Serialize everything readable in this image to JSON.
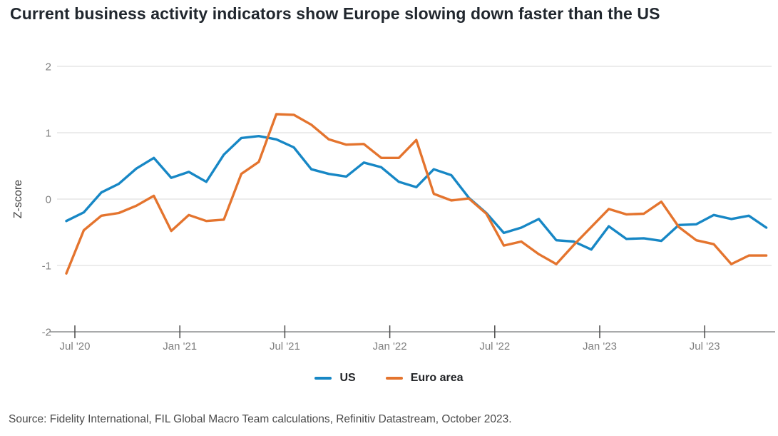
{
  "title": "Current business activity indicators show Europe slowing down faster than the US",
  "source": "Source: Fidelity International, FIL Global Macro Team calculations, Refinitiv Datastream, October 2023.",
  "colors": {
    "us": "#1787c5",
    "euro_area": "#e4742e",
    "grid": "#d9d9d9",
    "axis_line": "#a9aaab",
    "tick_mark": "#4a4a4a",
    "tick_label": "#7f7f7f",
    "axis_title": "#3c3c3c",
    "title": "#21272e",
    "source": "#4a4a4a"
  },
  "chart_data": {
    "type": "line",
    "title": "Current business activity indicators show Europe slowing down faster than the US",
    "ylabel": "Z-score",
    "xlabel": "",
    "ylim": [
      -2,
      2
    ],
    "grid": true,
    "legend_position": "bottom",
    "yticks": [
      "2",
      "1",
      "0",
      "-1",
      "-2"
    ],
    "ytick_values": [
      2,
      1,
      0,
      -1,
      -2
    ],
    "xticks": [
      {
        "label": "Jul '20",
        "index": 1
      },
      {
        "label": "Jan '21",
        "index": 7
      },
      {
        "label": "Jul '21",
        "index": 13
      },
      {
        "label": "Jan '22",
        "index": 19
      },
      {
        "label": "Jul '22",
        "index": 25
      },
      {
        "label": "Jan '23",
        "index": 31
      },
      {
        "label": "Jul '23",
        "index": 37
      }
    ],
    "x": [
      "Jun '20",
      "Jul '20",
      "Aug '20",
      "Sep '20",
      "Oct '20",
      "Nov '20",
      "Dec '20",
      "Jan '21",
      "Feb '21",
      "Mar '21",
      "Apr '21",
      "May '21",
      "Jun '21",
      "Jul '21",
      "Aug '21",
      "Sep '21",
      "Oct '21",
      "Nov '21",
      "Dec '21",
      "Jan '22",
      "Feb '22",
      "Mar '22",
      "Apr '22",
      "May '22",
      "Jun '22",
      "Jul '22",
      "Aug '22",
      "Sep '22",
      "Oct '22",
      "Nov '22",
      "Dec '22",
      "Jan '23",
      "Feb '23",
      "Mar '23",
      "Apr '23",
      "May '23",
      "Jun '23",
      "Jul '23",
      "Aug '23",
      "Sep '23",
      "Oct '23"
    ],
    "series": [
      {
        "name": "US",
        "color_key": "us",
        "values": [
          -0.33,
          -0.2,
          0.1,
          0.23,
          0.46,
          0.62,
          0.32,
          0.41,
          0.26,
          0.67,
          0.92,
          0.95,
          0.9,
          0.78,
          0.45,
          0.38,
          0.34,
          0.55,
          0.48,
          0.26,
          0.18,
          0.45,
          0.36,
          0.02,
          -0.21,
          -0.51,
          -0.43,
          -0.3,
          -0.62,
          -0.64,
          -0.76,
          -0.41,
          -0.6,
          -0.59,
          -0.63,
          -0.39,
          -0.38,
          -0.24,
          -0.3,
          -0.25,
          -0.43
        ]
      },
      {
        "name": "Euro area",
        "color_key": "euro_area",
        "values": [
          -1.12,
          -0.47,
          -0.25,
          -0.21,
          -0.1,
          0.05,
          -0.48,
          -0.24,
          -0.33,
          -0.31,
          0.38,
          0.56,
          1.28,
          1.27,
          1.12,
          0.9,
          0.82,
          0.83,
          0.62,
          0.62,
          0.89,
          0.08,
          -0.02,
          0.01,
          -0.22,
          -0.7,
          -0.64,
          -0.83,
          -0.98,
          -0.69,
          -0.42,
          -0.15,
          -0.23,
          -0.22,
          -0.04,
          -0.42,
          -0.62,
          -0.68,
          -0.98,
          -0.85,
          -0.85
        ]
      }
    ]
  }
}
